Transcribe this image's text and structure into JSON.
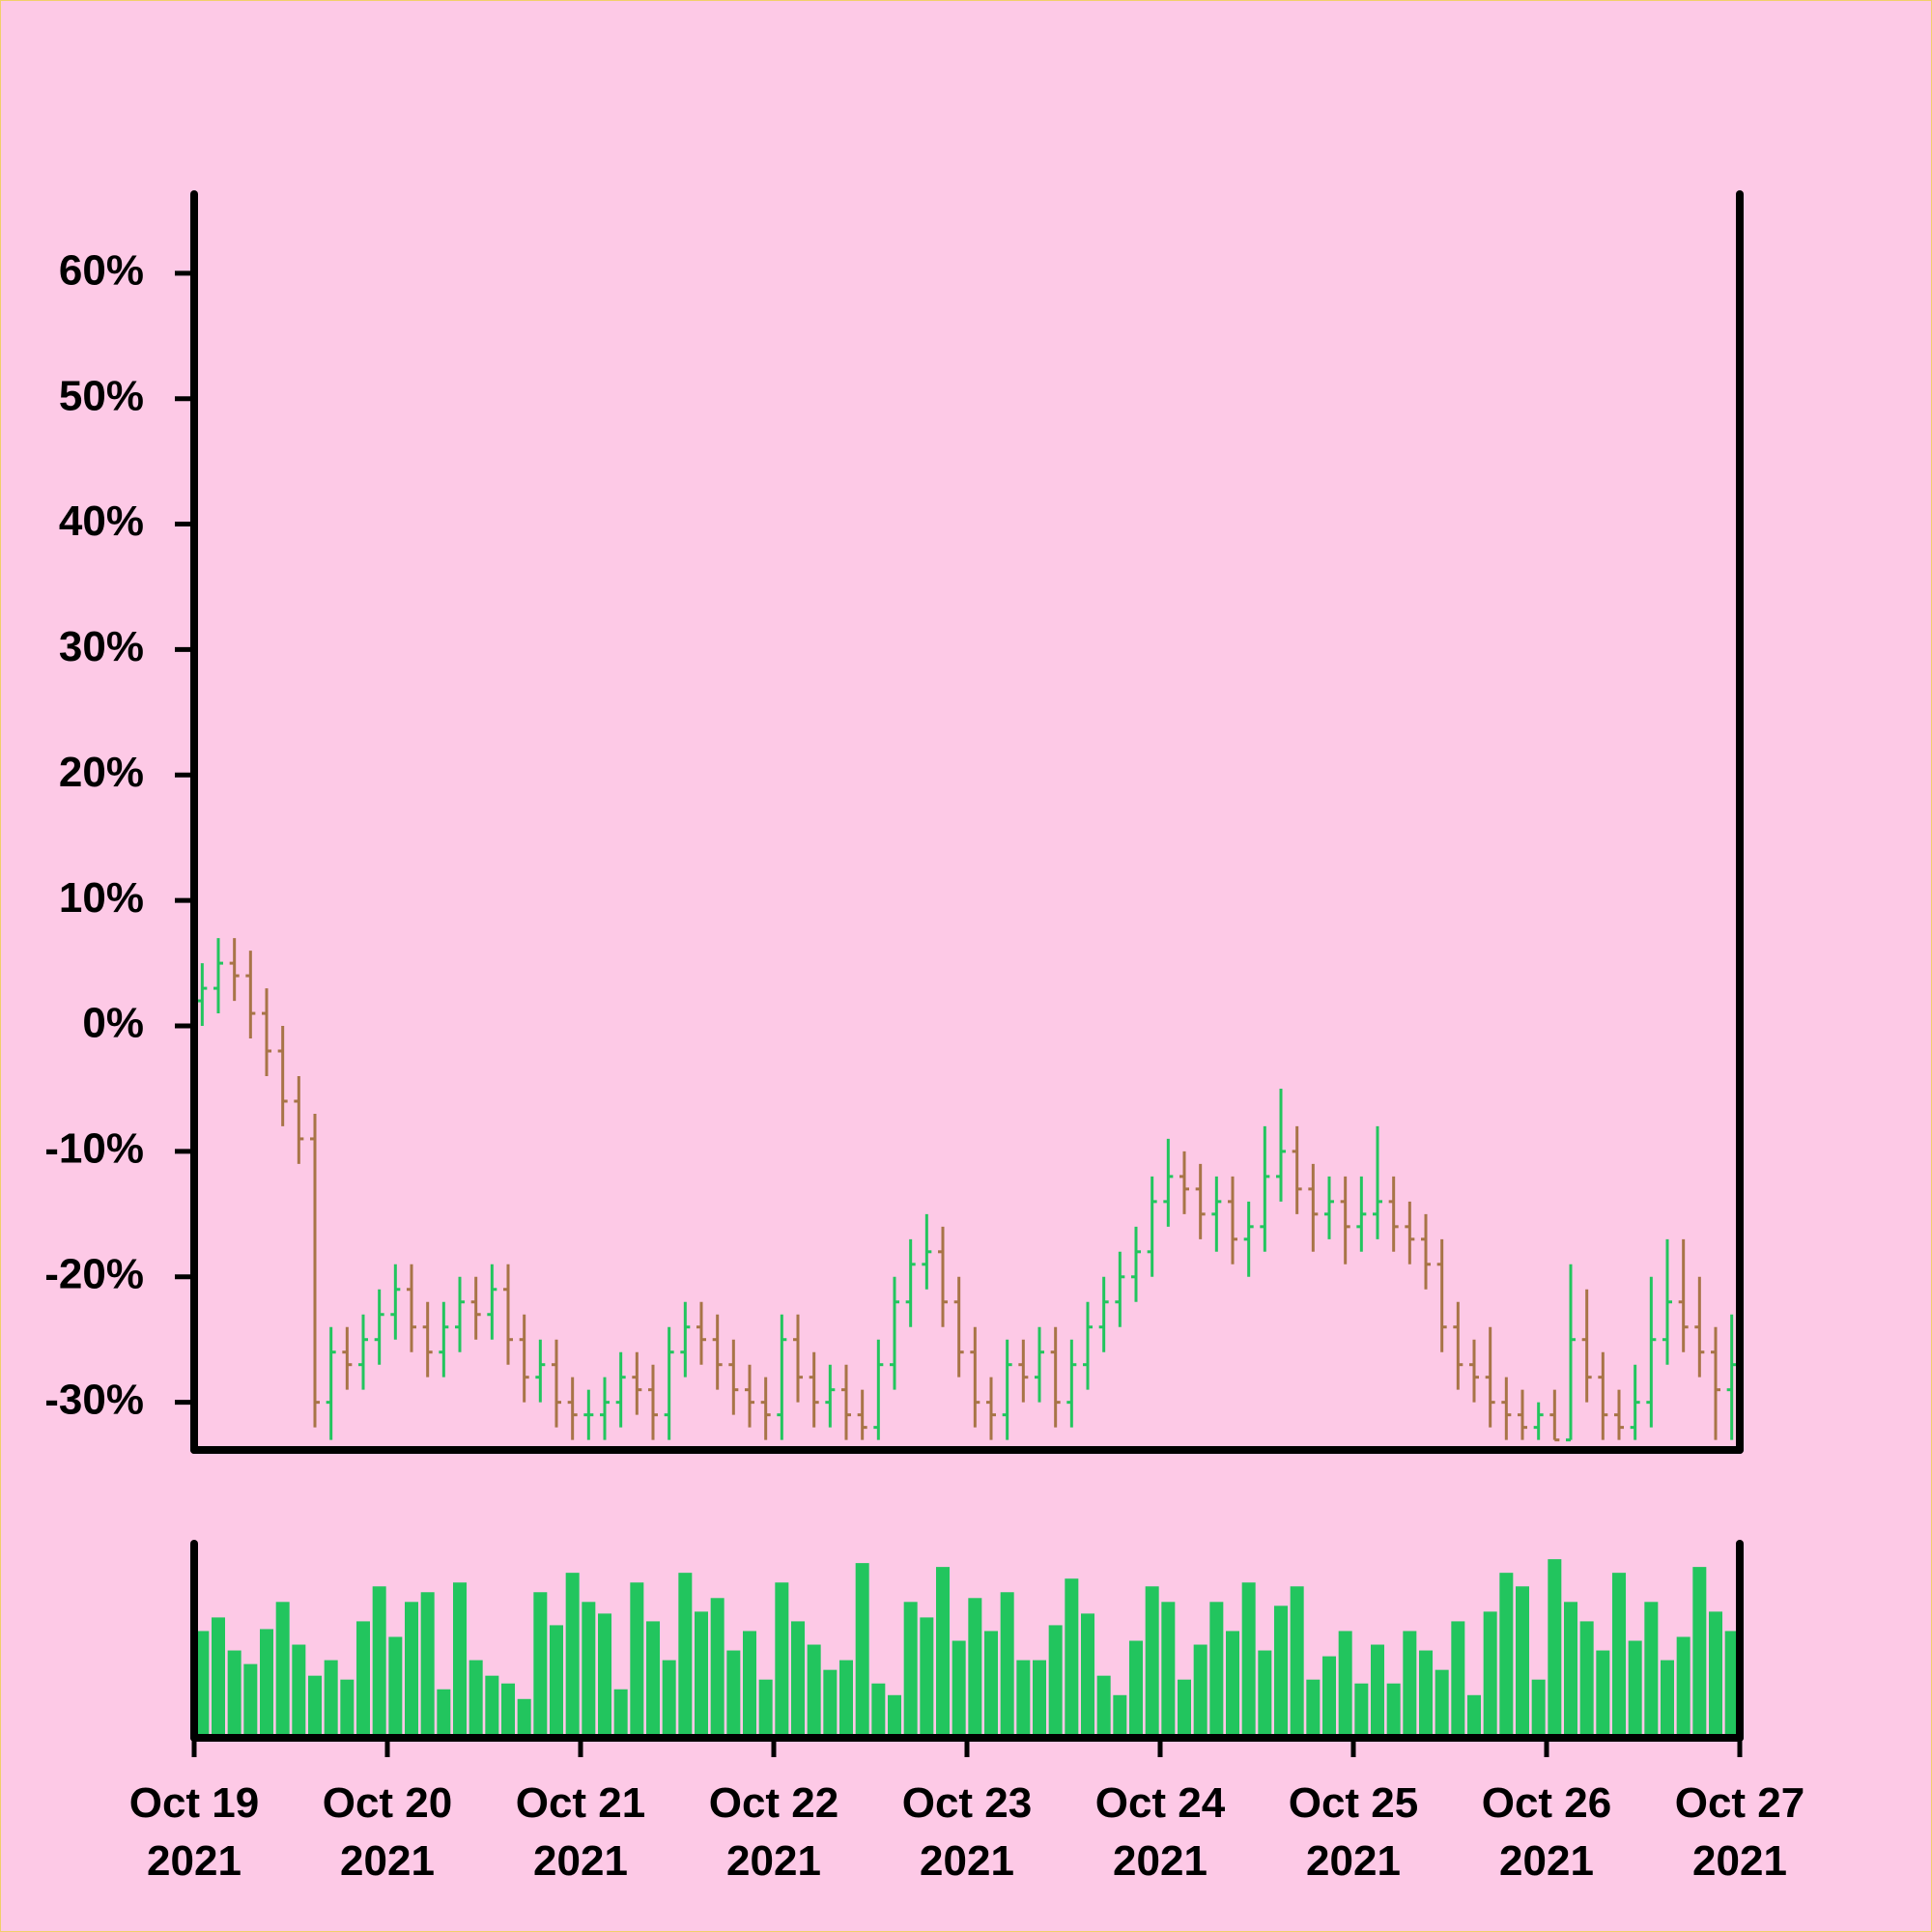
{
  "chart_data": {
    "type": "ohlc",
    "x": [
      "2021-10-19T00:00",
      "2021-10-19T02:00",
      "2021-10-19T04:00",
      "2021-10-19T06:00",
      "2021-10-19T08:00",
      "2021-10-19T10:00",
      "2021-10-19T12:00",
      "2021-10-19T14:00",
      "2021-10-19T16:00",
      "2021-10-19T18:00",
      "2021-10-19T20:00",
      "2021-10-19T22:00",
      "2021-10-20T00:00",
      "2021-10-20T02:00",
      "2021-10-20T04:00",
      "2021-10-20T06:00",
      "2021-10-20T08:00",
      "2021-10-20T10:00",
      "2021-10-20T12:00",
      "2021-10-20T14:00",
      "2021-10-20T16:00",
      "2021-10-20T18:00",
      "2021-10-20T20:00",
      "2021-10-20T22:00",
      "2021-10-21T00:00",
      "2021-10-21T02:00",
      "2021-10-21T04:00",
      "2021-10-21T06:00",
      "2021-10-21T08:00",
      "2021-10-21T10:00",
      "2021-10-21T12:00",
      "2021-10-21T14:00",
      "2021-10-21T16:00",
      "2021-10-21T18:00",
      "2021-10-21T20:00",
      "2021-10-21T22:00",
      "2021-10-22T00:00",
      "2021-10-22T02:00",
      "2021-10-22T04:00",
      "2021-10-22T06:00",
      "2021-10-22T08:00",
      "2021-10-22T10:00",
      "2021-10-22T12:00",
      "2021-10-22T14:00",
      "2021-10-22T16:00",
      "2021-10-22T18:00",
      "2021-10-22T20:00",
      "2021-10-22T22:00",
      "2021-10-23T00:00",
      "2021-10-23T02:00",
      "2021-10-23T04:00",
      "2021-10-23T06:00",
      "2021-10-23T08:00",
      "2021-10-23T10:00",
      "2021-10-23T12:00",
      "2021-10-23T14:00",
      "2021-10-23T16:00",
      "2021-10-23T18:00",
      "2021-10-23T20:00",
      "2021-10-23T22:00",
      "2021-10-24T00:00",
      "2021-10-24T02:00",
      "2021-10-24T04:00",
      "2021-10-24T06:00",
      "2021-10-24T08:00",
      "2021-10-24T10:00",
      "2021-10-24T12:00",
      "2021-10-24T14:00",
      "2021-10-24T16:00",
      "2021-10-24T18:00",
      "2021-10-24T20:00",
      "2021-10-24T22:00",
      "2021-10-25T00:00",
      "2021-10-25T02:00",
      "2021-10-25T04:00",
      "2021-10-25T06:00",
      "2021-10-25T08:00",
      "2021-10-25T10:00",
      "2021-10-25T12:00",
      "2021-10-25T14:00",
      "2021-10-25T16:00",
      "2021-10-25T18:00",
      "2021-10-25T20:00",
      "2021-10-25T22:00",
      "2021-10-26T00:00",
      "2021-10-26T02:00",
      "2021-10-26T04:00",
      "2021-10-26T06:00",
      "2021-10-26T08:00",
      "2021-10-26T10:00",
      "2021-10-26T12:00",
      "2021-10-26T14:00",
      "2021-10-26T16:00",
      "2021-10-26T18:00",
      "2021-10-26T20:00",
      "2021-10-26T22:00"
    ],
    "open": [
      2,
      3,
      5,
      4,
      1,
      -2,
      -6,
      -9,
      -30,
      -26,
      -27,
      -25,
      -23,
      -21,
      -24,
      -26,
      -24,
      -22,
      -23,
      -21,
      -25,
      -28,
      -27,
      -30,
      -31,
      -31,
      -30,
      -28,
      -29,
      -31,
      -26,
      -24,
      -25,
      -27,
      -29,
      -30,
      -31,
      -25,
      -28,
      -30,
      -29,
      -31,
      -32,
      -27,
      -22,
      -19,
      -18,
      -22,
      -26,
      -30,
      -31,
      -27,
      -28,
      -26,
      -30,
      -27,
      -24,
      -22,
      -20,
      -18,
      -14,
      -12,
      -13,
      -15,
      -14,
      -17,
      -16,
      -12,
      -10,
      -13,
      -15,
      -14,
      -16,
      -15,
      -14,
      -16,
      -17,
      -19,
      -24,
      -27,
      -28,
      -30,
      -31,
      -32,
      -31,
      -33,
      -25,
      -28,
      -31,
      -32,
      -30,
      -25,
      -22,
      -24,
      -26,
      -29
    ],
    "high": [
      5,
      7,
      7,
      6,
      3,
      0,
      -4,
      -7,
      -24,
      -24,
      -23,
      -21,
      -19,
      -19,
      -22,
      -22,
      -20,
      -20,
      -19,
      -19,
      -23,
      -25,
      -25,
      -28,
      -29,
      -28,
      -26,
      -26,
      -27,
      -24,
      -22,
      -22,
      -23,
      -25,
      -27,
      -28,
      -23,
      -23,
      -26,
      -27,
      -27,
      -29,
      -25,
      -20,
      -17,
      -15,
      -16,
      -20,
      -24,
      -28,
      -25,
      -25,
      -24,
      -24,
      -25,
      -22,
      -20,
      -18,
      -16,
      -12,
      -9,
      -10,
      -11,
      -12,
      -12,
      -14,
      -8,
      -5,
      -8,
      -11,
      -12,
      -12,
      -12,
      -8,
      -12,
      -14,
      -15,
      -17,
      -22,
      -25,
      -24,
      -28,
      -29,
      -30,
      -29,
      -19,
      -21,
      -26,
      -29,
      -27,
      -20,
      -17,
      -17,
      -20,
      -24,
      -23
    ],
    "low": [
      0,
      1,
      2,
      -1,
      -4,
      -8,
      -11,
      -32,
      -33,
      -29,
      -29,
      -27,
      -25,
      -26,
      -28,
      -28,
      -26,
      -25,
      -25,
      -27,
      -30,
      -30,
      -32,
      -33,
      -33,
      -33,
      -32,
      -31,
      -33,
      -33,
      -28,
      -27,
      -29,
      -31,
      -32,
      -33,
      -33,
      -30,
      -32,
      -32,
      -33,
      -33,
      -33,
      -29,
      -24,
      -21,
      -24,
      -28,
      -32,
      -33,
      -33,
      -30,
      -30,
      -32,
      -32,
      -29,
      -26,
      -24,
      -22,
      -20,
      -16,
      -15,
      -17,
      -18,
      -19,
      -20,
      -18,
      -14,
      -15,
      -18,
      -17,
      -19,
      -18,
      -17,
      -18,
      -19,
      -21,
      -26,
      -29,
      -30,
      -32,
      -33,
      -33,
      -33,
      -33,
      -33,
      -30,
      -33,
      -33,
      -33,
      -32,
      -27,
      -26,
      -28,
      -33,
      -33
    ],
    "close": [
      3,
      5,
      4,
      1,
      -2,
      -6,
      -9,
      -30,
      -26,
      -27,
      -25,
      -23,
      -21,
      -24,
      -26,
      -24,
      -22,
      -23,
      -21,
      -25,
      -28,
      -27,
      -30,
      -31,
      -31,
      -30,
      -28,
      -29,
      -31,
      -26,
      -24,
      -25,
      -27,
      -29,
      -30,
      -31,
      -25,
      -28,
      -30,
      -29,
      -31,
      -32,
      -27,
      -22,
      -19,
      -18,
      -22,
      -26,
      -30,
      -31,
      -27,
      -28,
      -26,
      -30,
      -27,
      -24,
      -22,
      -20,
      -18,
      -14,
      -12,
      -13,
      -15,
      -14,
      -17,
      -16,
      -12,
      -10,
      -13,
      -15,
      -14,
      -16,
      -15,
      -14,
      -16,
      -17,
      -19,
      -24,
      -27,
      -28,
      -30,
      -31,
      -32,
      -31,
      -33,
      -25,
      -28,
      -31,
      -32,
      -30,
      -25,
      -22,
      -24,
      -26,
      -29,
      -27
    ],
    "volume": [
      55,
      62,
      45,
      38,
      56,
      70,
      48,
      32,
      40,
      30,
      60,
      78,
      52,
      70,
      75,
      25,
      80,
      40,
      32,
      28,
      20,
      75,
      58,
      85,
      70,
      64,
      25,
      80,
      60,
      40,
      85,
      65,
      72,
      45,
      55,
      30,
      80,
      60,
      48,
      35,
      40,
      90,
      28,
      22,
      70,
      62,
      88,
      50,
      72,
      55,
      75,
      40,
      40,
      58,
      82,
      64,
      32,
      22,
      50,
      78,
      70,
      30,
      48,
      70,
      55,
      80,
      45,
      68,
      78,
      30,
      42,
      55,
      28,
      48,
      28,
      55,
      45,
      35,
      60,
      22,
      65,
      85,
      78,
      30,
      92,
      70,
      60,
      45,
      85,
      50,
      70,
      40,
      52,
      88,
      65,
      55
    ],
    "up_color": "#22c55e",
    "down_color": "#a87447",
    "volume_color": "#22c55e",
    "xlim": [
      "2021-10-19T00:00",
      "2021-10-27T00:00"
    ],
    "xticks": [
      {
        "value": "2021-10-19T00:00",
        "label": "Oct 19\n2021"
      },
      {
        "value": "2021-10-20T00:00",
        "label": "Oct 20\n2021"
      },
      {
        "value": "2021-10-21T00:00",
        "label": "Oct 21\n2021"
      },
      {
        "value": "2021-10-22T00:00",
        "label": "Oct 22\n2021"
      },
      {
        "value": "2021-10-23T00:00",
        "label": "Oct 23\n2021"
      },
      {
        "value": "2021-10-24T00:00",
        "label": "Oct 24\n2021"
      },
      {
        "value": "2021-10-25T00:00",
        "label": "Oct 25\n2021"
      },
      {
        "value": "2021-10-26T00:00",
        "label": "Oct 26\n2021"
      },
      {
        "value": "2021-10-27T00:00",
        "label": "Oct 27\n2021"
      }
    ],
    "ylim": [
      -33.8,
      66.3
    ],
    "yticks": [
      {
        "value": -30,
        "label": "-30%"
      },
      {
        "value": -20,
        "label": "-20%"
      },
      {
        "value": -10,
        "label": "-10%"
      },
      {
        "value": 0,
        "label": "0%"
      },
      {
        "value": 10,
        "label": "10%"
      },
      {
        "value": 20,
        "label": "20%"
      },
      {
        "value": 30,
        "label": "30%"
      },
      {
        "value": 40,
        "label": "40%"
      },
      {
        "value": 50,
        "label": "50%"
      },
      {
        "value": 60,
        "label": "60%"
      }
    ],
    "volume_ylim": [
      0,
      100
    ]
  }
}
